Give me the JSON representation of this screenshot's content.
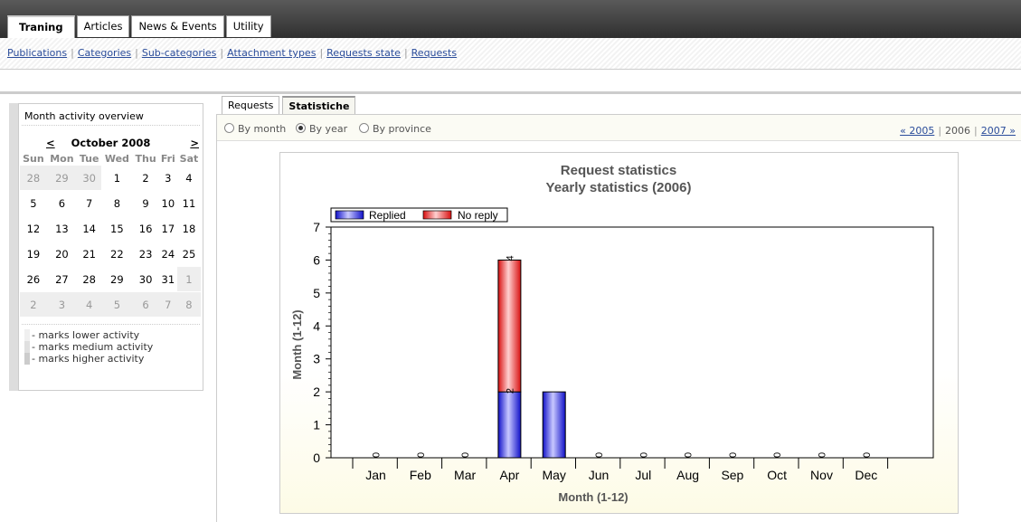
{
  "top_tabs": [
    {
      "label": "Traning",
      "active": true
    },
    {
      "label": "Articles",
      "active": false
    },
    {
      "label": "News & Events",
      "active": false
    },
    {
      "label": "Utility",
      "active": false
    }
  ],
  "sub_nav": [
    "Publications",
    "Categories",
    "Sub-categories",
    "Attachment types",
    "Requests state",
    "Requests"
  ],
  "calendar": {
    "title": "Month activity overview",
    "prev": "<",
    "next": ">",
    "month_label": "October 2008",
    "weekdays": [
      "Sun",
      "Mon",
      "Tue",
      "Wed",
      "Thu",
      "Fri",
      "Sat"
    ],
    "weeks": [
      [
        [
          "28",
          1
        ],
        [
          "29",
          1
        ],
        [
          "30",
          1
        ],
        [
          "1",
          0
        ],
        [
          "2",
          0
        ],
        [
          "3",
          0
        ],
        [
          "4",
          0
        ]
      ],
      [
        [
          "5",
          0
        ],
        [
          "6",
          0
        ],
        [
          "7",
          0
        ],
        [
          "8",
          0
        ],
        [
          "9",
          0
        ],
        [
          "10",
          0
        ],
        [
          "11",
          0
        ]
      ],
      [
        [
          "12",
          0
        ],
        [
          "13",
          0
        ],
        [
          "14",
          0
        ],
        [
          "15",
          0
        ],
        [
          "16",
          0
        ],
        [
          "17",
          0
        ],
        [
          "18",
          0
        ]
      ],
      [
        [
          "19",
          0
        ],
        [
          "20",
          0
        ],
        [
          "21",
          0
        ],
        [
          "22",
          0
        ],
        [
          "23",
          0
        ],
        [
          "24",
          0
        ],
        [
          "25",
          0
        ]
      ],
      [
        [
          "26",
          0
        ],
        [
          "27",
          0
        ],
        [
          "28",
          0
        ],
        [
          "29",
          0
        ],
        [
          "30",
          0
        ],
        [
          "31",
          0
        ],
        [
          "1",
          1
        ]
      ],
      [
        [
          "2",
          1
        ],
        [
          "3",
          1
        ],
        [
          "4",
          1
        ],
        [
          "5",
          1
        ],
        [
          "6",
          1
        ],
        [
          "7",
          1
        ],
        [
          "8",
          1
        ]
      ]
    ],
    "legend": [
      "- marks lower activity",
      "- marks medium activity",
      "- marks higher activity"
    ],
    "legend_colors": [
      "#f0f0f0",
      "#e0e0e0",
      "#cccccc"
    ]
  },
  "main_tabs": [
    {
      "label": "Requests",
      "active": false
    },
    {
      "label": "Statistiche",
      "active": true
    }
  ],
  "radios": [
    {
      "label": "By month",
      "checked": false
    },
    {
      "label": "By year",
      "checked": true
    },
    {
      "label": "By province",
      "checked": false
    }
  ],
  "years": {
    "prev": "« 2005",
    "current": "2006",
    "next": "2007 »"
  },
  "chart_data": {
    "type": "bar",
    "stacked": true,
    "title": "Request statistics",
    "subtitle": "Yearly statistics (2006)",
    "xlabel": "Month (1-12)",
    "ylabel": "Month (1-12)",
    "ylim": [
      0,
      7
    ],
    "yticks": [
      0,
      1,
      2,
      3,
      4,
      5,
      6,
      7
    ],
    "categories": [
      "Jan",
      "Feb",
      "Mar",
      "Apr",
      "May",
      "Jun",
      "Jul",
      "Aug",
      "Sep",
      "Oct",
      "Nov",
      "Dec"
    ],
    "series": [
      {
        "name": "Replied",
        "color": "#2222ee",
        "values": [
          0,
          0,
          0,
          2,
          2,
          0,
          0,
          0,
          0,
          0,
          0,
          0
        ]
      },
      {
        "name": "No reply",
        "color": "#ee2222",
        "values": [
          0,
          0,
          0,
          4,
          0,
          0,
          0,
          0,
          0,
          0,
          0,
          0
        ]
      }
    ],
    "value_labels": [
      "0",
      "0",
      "0",
      "2",
      "",
      "0",
      "0",
      "0",
      "0",
      "0",
      "0",
      "0"
    ],
    "top_labels": [
      "",
      "",
      "",
      "4",
      "",
      "",
      "",
      "",
      "",
      "",
      "",
      ""
    ],
    "grid": false,
    "legend": "top-left"
  }
}
